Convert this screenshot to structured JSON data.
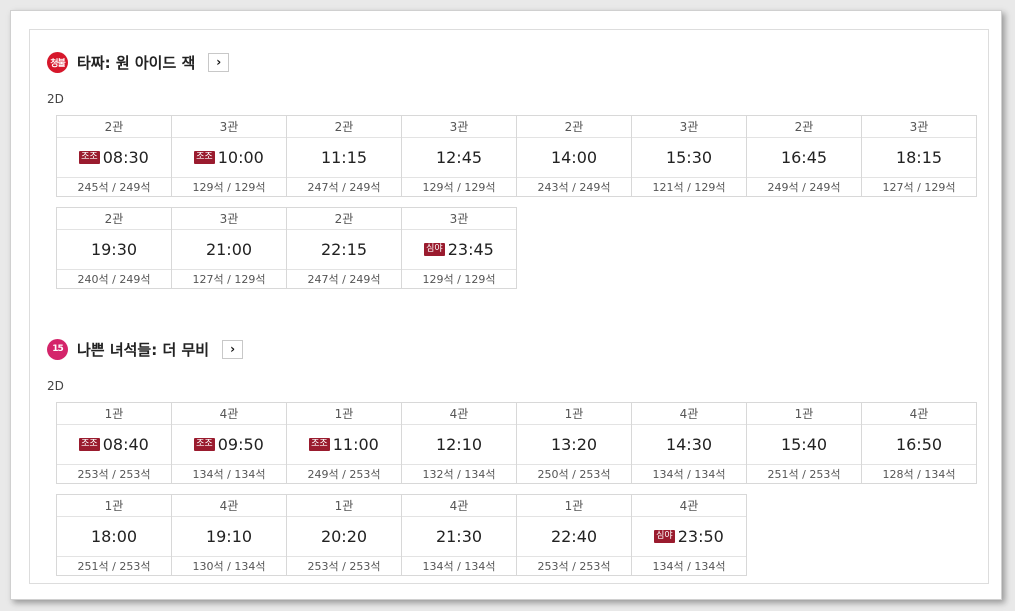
{
  "movies": [
    {
      "rating": "청불",
      "rating_color": "#d6172b",
      "title": "타짜: 원 아이드 잭",
      "format": "2D",
      "rows": [
        [
          {
            "hall": "2관",
            "badge": "조조",
            "time": "08:30",
            "seats": "245석 / 249석"
          },
          {
            "hall": "3관",
            "badge": "조조",
            "time": "10:00",
            "seats": "129석 / 129석"
          },
          {
            "hall": "2관",
            "badge": "",
            "time": "11:15",
            "seats": "247석 / 249석"
          },
          {
            "hall": "3관",
            "badge": "",
            "time": "12:45",
            "seats": "129석 / 129석"
          },
          {
            "hall": "2관",
            "badge": "",
            "time": "14:00",
            "seats": "243석 / 249석"
          },
          {
            "hall": "3관",
            "badge": "",
            "time": "15:30",
            "seats": "121석 / 129석"
          },
          {
            "hall": "2관",
            "badge": "",
            "time": "16:45",
            "seats": "249석 / 249석"
          },
          {
            "hall": "3관",
            "badge": "",
            "time": "18:15",
            "seats": "127석 / 129석"
          }
        ],
        [
          {
            "hall": "2관",
            "badge": "",
            "time": "19:30",
            "seats": "240석 / 249석"
          },
          {
            "hall": "3관",
            "badge": "",
            "time": "21:00",
            "seats": "127석 / 129석"
          },
          {
            "hall": "2관",
            "badge": "",
            "time": "22:15",
            "seats": "247석 / 249석"
          },
          {
            "hall": "3관",
            "badge": "심야",
            "time": "23:45",
            "seats": "129석 / 129석"
          }
        ]
      ]
    },
    {
      "rating": "15",
      "rating_color": "#d4246a",
      "title": "나쁜 녀석들: 더 무비",
      "format": "2D",
      "rows": [
        [
          {
            "hall": "1관",
            "badge": "조조",
            "time": "08:40",
            "seats": "253석 / 253석"
          },
          {
            "hall": "4관",
            "badge": "조조",
            "time": "09:50",
            "seats": "134석 / 134석"
          },
          {
            "hall": "1관",
            "badge": "조조",
            "time": "11:00",
            "seats": "249석 / 253석"
          },
          {
            "hall": "4관",
            "badge": "",
            "time": "12:10",
            "seats": "132석 / 134석"
          },
          {
            "hall": "1관",
            "badge": "",
            "time": "13:20",
            "seats": "250석 / 253석"
          },
          {
            "hall": "4관",
            "badge": "",
            "time": "14:30",
            "seats": "134석 / 134석"
          },
          {
            "hall": "1관",
            "badge": "",
            "time": "15:40",
            "seats": "251석 / 253석"
          },
          {
            "hall": "4관",
            "badge": "",
            "time": "16:50",
            "seats": "128석 / 134석"
          }
        ],
        [
          {
            "hall": "1관",
            "badge": "",
            "time": "18:00",
            "seats": "251석 / 253석"
          },
          {
            "hall": "4관",
            "badge": "",
            "time": "19:10",
            "seats": "130석 / 134석"
          },
          {
            "hall": "1관",
            "badge": "",
            "time": "20:20",
            "seats": "253석 / 253석"
          },
          {
            "hall": "4관",
            "badge": "",
            "time": "21:30",
            "seats": "134석 / 134석"
          },
          {
            "hall": "1관",
            "badge": "",
            "time": "22:40",
            "seats": "253석 / 253석"
          },
          {
            "hall": "4관",
            "badge": "심야",
            "time": "23:50",
            "seats": "134석 / 134석"
          }
        ]
      ]
    }
  ],
  "badge_color": "#9a1b2e",
  "more_icon": "chevron-right-icon"
}
